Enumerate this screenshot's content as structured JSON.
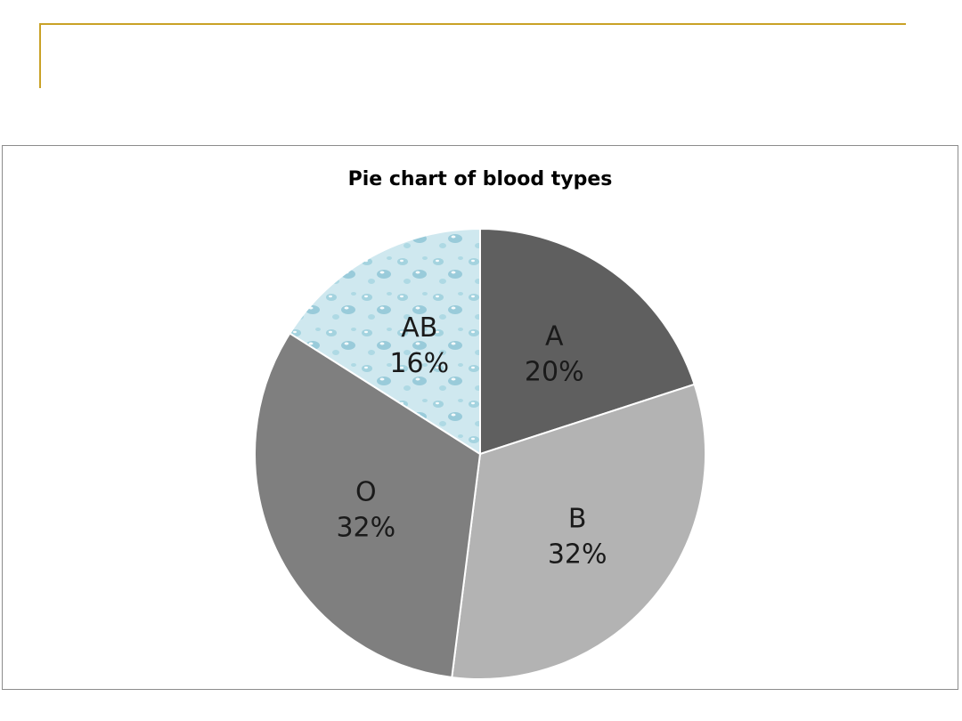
{
  "chart_data": {
    "type": "pie",
    "title": "Pie chart of blood types",
    "categories": [
      "A",
      "B",
      "O",
      "AB"
    ],
    "values": [
      20,
      32,
      32,
      16
    ],
    "value_labels": [
      "20%",
      "32%",
      "32%",
      "16%"
    ],
    "start_angle": 0,
    "direction": "clockwise",
    "legend": "none",
    "colors": [
      "#5f5f5f",
      "#b3b3b3",
      "#7f7f7f",
      "#c8e4ec"
    ],
    "ab_texture": "water-droplets"
  }
}
